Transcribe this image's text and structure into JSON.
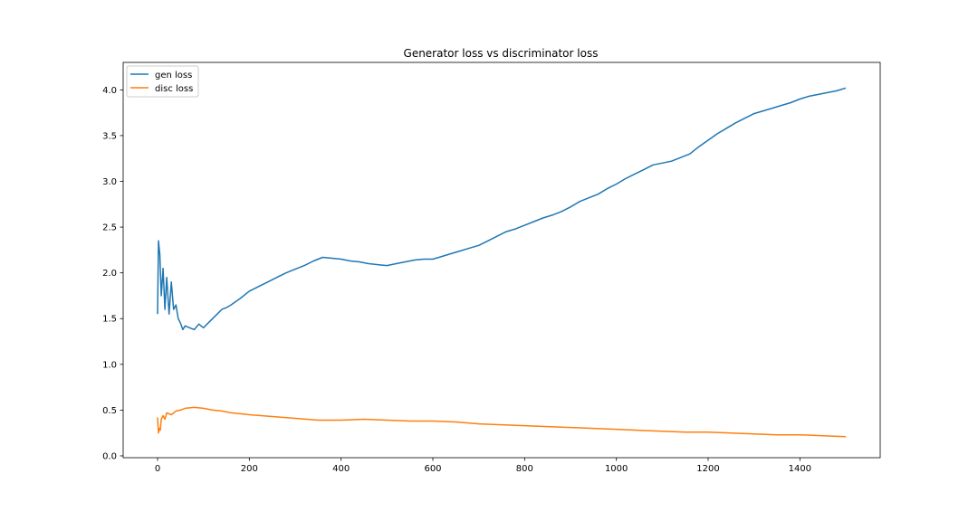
{
  "chart_data": {
    "type": "line",
    "title": "Generator loss vs discriminator loss",
    "xlabel": "",
    "ylabel": "",
    "xlim": [
      -75,
      1575
    ],
    "ylim": [
      -0.02,
      4.3
    ],
    "xticks": [
      0,
      200,
      400,
      600,
      800,
      1000,
      1200,
      1400
    ],
    "yticks": [
      0.0,
      0.5,
      1.0,
      1.5,
      2.0,
      2.5,
      3.0,
      3.5,
      4.0
    ],
    "xtick_labels": [
      "0",
      "200",
      "400",
      "600",
      "800",
      "1000",
      "1200",
      "1400"
    ],
    "ytick_labels": [
      "0.0",
      "0.5",
      "1.0",
      "1.5",
      "2.0",
      "2.5",
      "3.0",
      "3.5",
      "4.0"
    ],
    "grid": false,
    "legend_position": "top-left",
    "series": [
      {
        "name": "gen loss",
        "color": "#1f77b4",
        "x": [
          0,
          2,
          5,
          8,
          12,
          16,
          20,
          25,
          30,
          35,
          40,
          45,
          50,
          55,
          60,
          70,
          80,
          90,
          100,
          110,
          120,
          130,
          140,
          150,
          160,
          180,
          200,
          220,
          240,
          260,
          280,
          300,
          320,
          340,
          360,
          380,
          400,
          420,
          440,
          460,
          480,
          500,
          520,
          540,
          560,
          580,
          600,
          620,
          640,
          660,
          680,
          700,
          720,
          740,
          760,
          780,
          800,
          820,
          840,
          860,
          880,
          900,
          920,
          940,
          960,
          980,
          1000,
          1020,
          1040,
          1060,
          1080,
          1100,
          1120,
          1140,
          1160,
          1180,
          1200,
          1220,
          1240,
          1260,
          1280,
          1300,
          1320,
          1340,
          1360,
          1380,
          1400,
          1420,
          1440,
          1460,
          1480,
          1500
        ],
        "values": [
          1.55,
          2.35,
          2.2,
          1.75,
          2.05,
          1.6,
          1.95,
          1.55,
          1.9,
          1.6,
          1.65,
          1.5,
          1.45,
          1.38,
          1.42,
          1.4,
          1.38,
          1.44,
          1.4,
          1.45,
          1.5,
          1.55,
          1.6,
          1.62,
          1.65,
          1.72,
          1.8,
          1.85,
          1.9,
          1.95,
          2.0,
          2.04,
          2.08,
          2.13,
          2.17,
          2.16,
          2.15,
          2.13,
          2.12,
          2.1,
          2.09,
          2.08,
          2.1,
          2.12,
          2.14,
          2.15,
          2.15,
          2.18,
          2.21,
          2.24,
          2.27,
          2.3,
          2.35,
          2.4,
          2.45,
          2.48,
          2.52,
          2.56,
          2.6,
          2.63,
          2.67,
          2.72,
          2.78,
          2.82,
          2.86,
          2.92,
          2.97,
          3.03,
          3.08,
          3.13,
          3.18,
          3.2,
          3.22,
          3.26,
          3.3,
          3.38,
          3.45,
          3.52,
          3.58,
          3.64,
          3.69,
          3.74,
          3.77,
          3.8,
          3.83,
          3.86,
          3.9,
          3.93,
          3.95,
          3.97,
          3.99,
          4.02
        ]
      },
      {
        "name": "disc loss",
        "color": "#ff7f0e",
        "x": [
          0,
          2,
          4,
          6,
          8,
          12,
          16,
          20,
          30,
          40,
          50,
          60,
          80,
          100,
          120,
          140,
          160,
          180,
          200,
          250,
          300,
          350,
          400,
          450,
          500,
          550,
          600,
          650,
          700,
          750,
          800,
          850,
          900,
          950,
          1000,
          1050,
          1100,
          1150,
          1200,
          1250,
          1300,
          1350,
          1400,
          1450,
          1500
        ],
        "values": [
          0.42,
          0.25,
          0.3,
          0.28,
          0.4,
          0.44,
          0.4,
          0.47,
          0.45,
          0.49,
          0.5,
          0.52,
          0.53,
          0.52,
          0.5,
          0.49,
          0.47,
          0.46,
          0.45,
          0.43,
          0.41,
          0.39,
          0.39,
          0.4,
          0.39,
          0.38,
          0.38,
          0.37,
          0.35,
          0.34,
          0.33,
          0.32,
          0.31,
          0.3,
          0.29,
          0.28,
          0.27,
          0.26,
          0.26,
          0.25,
          0.24,
          0.23,
          0.23,
          0.22,
          0.21
        ]
      }
    ]
  }
}
